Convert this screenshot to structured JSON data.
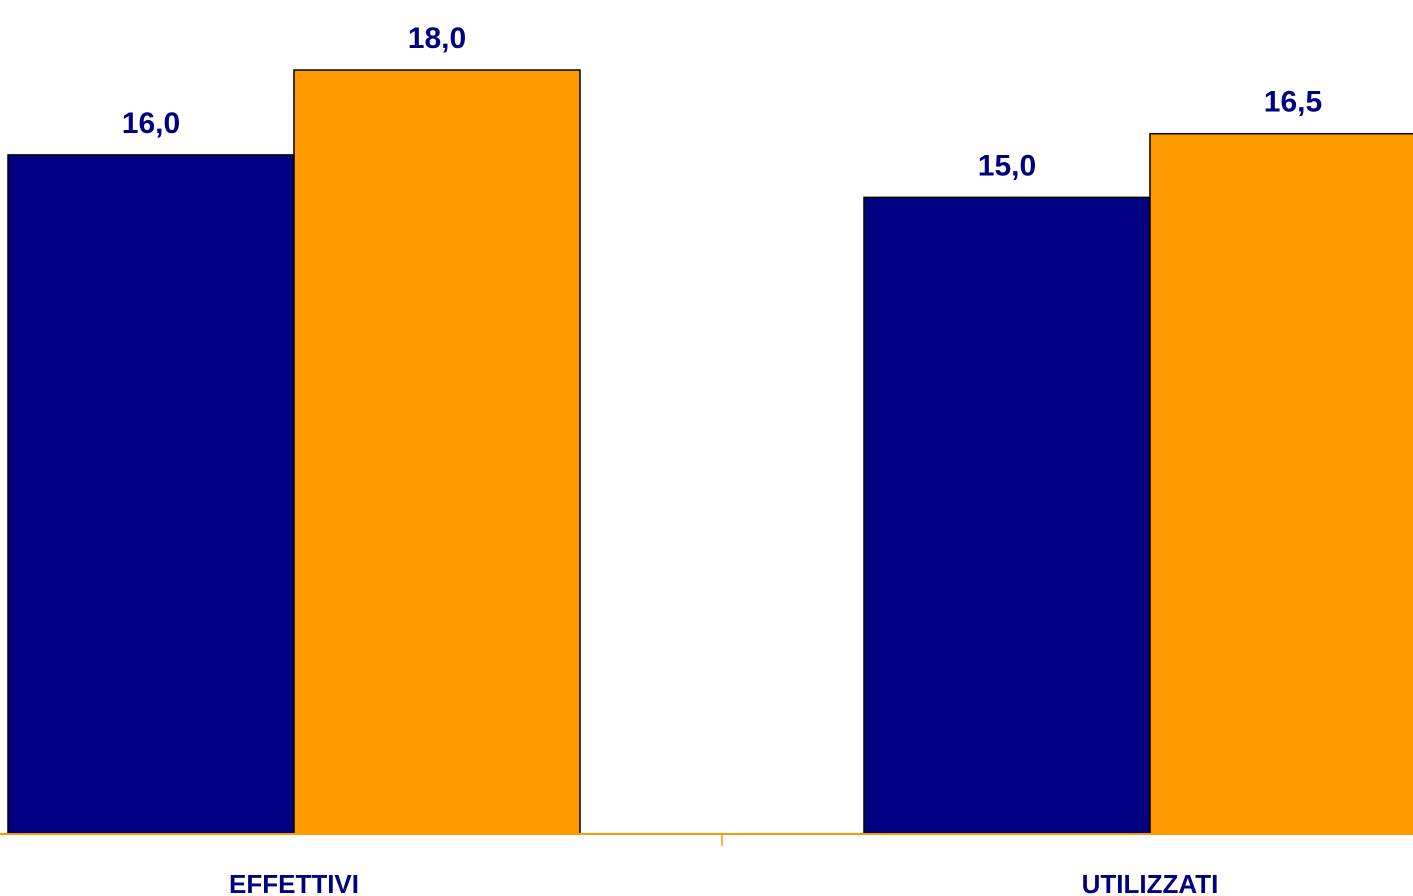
{
  "chart_data": {
    "type": "bar",
    "categories": [
      "EFFETTIVI",
      "UTILIZZATI"
    ],
    "series": [
      {
        "values": [
          16.0,
          15.0
        ],
        "color": "#000080"
      },
      {
        "values": [
          18.0,
          16.5
        ],
        "color": "#FF9900"
      }
    ],
    "data_labels": [
      [
        "16,0",
        "15,0"
      ],
      [
        "18,0",
        "16,5"
      ]
    ],
    "ylim": [
      0,
      19.5
    ],
    "axis_color": "#FF9900",
    "grid": false,
    "legend": "none"
  }
}
